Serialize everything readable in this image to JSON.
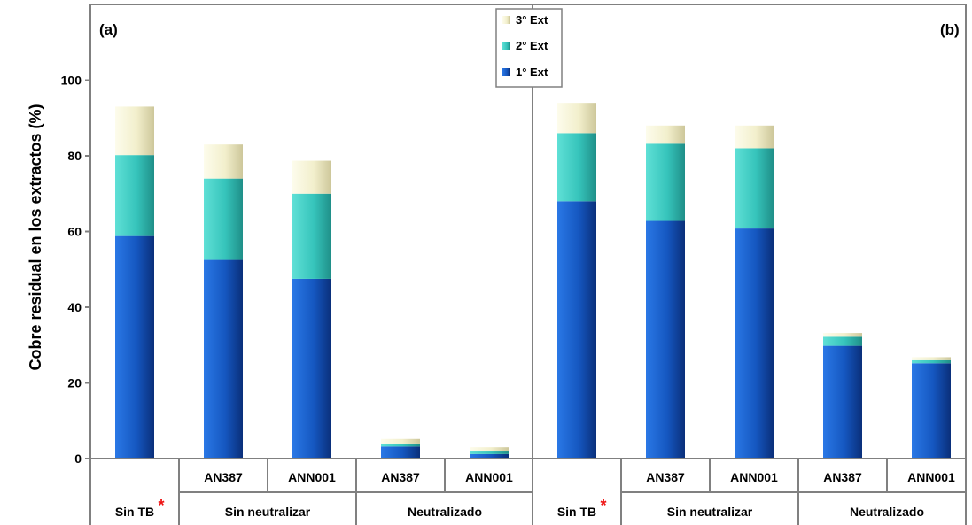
{
  "chart_data": {
    "type": "bar",
    "stacked": true,
    "ylabel": "Cobre residual en los extractos (%)",
    "ylim": [
      0,
      120
    ],
    "yticks": [
      0,
      20,
      40,
      60,
      80,
      100
    ],
    "grid": false,
    "legend": "top-center",
    "panels": [
      {
        "label": "(a)",
        "categories": [
          {
            "name": "",
            "group": "Sin TB",
            "asterisk": true
          },
          {
            "name": "AN387",
            "group": "Sin neutralizar"
          },
          {
            "name": "ANN001",
            "group": "Sin neutralizar"
          },
          {
            "name": "AN387",
            "group": "Neutralizado"
          },
          {
            "name": "ANN001",
            "group": "Neutralizado"
          }
        ],
        "series": [
          {
            "name": "1° Ext",
            "values": [
              58.8,
              52.5,
              47.5,
              3.2,
              1.2
            ]
          },
          {
            "name": "2° Ext",
            "values": [
              21.4,
              21.5,
              22.5,
              0.8,
              0.9
            ]
          },
          {
            "name": "3° Ext",
            "values": [
              12.8,
              9.0,
              8.7,
              1.2,
              0.9
            ]
          }
        ]
      },
      {
        "label": "(b)",
        "categories": [
          {
            "name": "",
            "group": "Sin TB",
            "asterisk": true
          },
          {
            "name": "AN387",
            "group": "Sin neutralizar"
          },
          {
            "name": "ANN001",
            "group": "Sin neutralizar"
          },
          {
            "name": "AN387",
            "group": "Neutralizado"
          },
          {
            "name": "ANN001",
            "group": "Neutralizado"
          }
        ],
        "series": [
          {
            "name": "1° Ext",
            "values": [
              68.0,
              62.8,
              60.8,
              29.8,
              25.2
            ]
          },
          {
            "name": "2° Ext",
            "values": [
              18.0,
              20.4,
              21.2,
              2.4,
              0.8
            ]
          },
          {
            "name": "3° Ext",
            "values": [
              8.0,
              4.8,
              6.0,
              1.0,
              0.8
            ]
          }
        ]
      }
    ]
  },
  "legend_items": [
    "3° Ext",
    "2° Ext",
    "1° Ext"
  ],
  "group_labels": [
    "Sin TB",
    "Sin neutralizar",
    "Neutralizado"
  ],
  "colors": {
    "series_1": "#1a5fc4",
    "series_2": "#3ec9c0",
    "series_3": "#f2f0cf",
    "axis": "#808080",
    "asterisk": "#ee1111"
  }
}
